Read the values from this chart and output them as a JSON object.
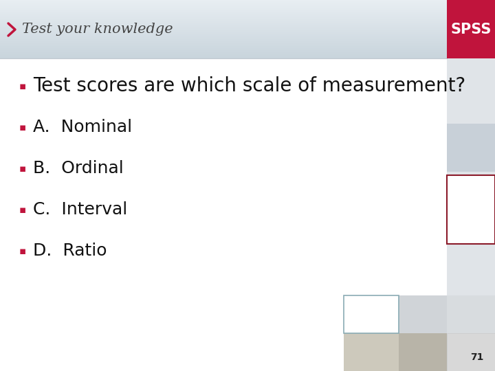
{
  "title": "Test your knowledge",
  "bullet_char": "▪",
  "question": "Test scores are which scale of measurement?",
  "options": [
    "A.  Nominal",
    "B.  Ordinal",
    "C.  Interval",
    "D.  Ratio"
  ],
  "bg_gradient_top": "#c8d4dc",
  "bg_gradient_bottom": "#e8eef2",
  "spss_red": "#c0143c",
  "spss_text": "SPSS",
  "title_color": "#444444",
  "question_color": "#111111",
  "option_color": "#111111",
  "bullet_color": "#c0143c",
  "chevron_color": "#c0143c",
  "page_number": "71",
  "header_line_color": "#c0c8d0",
  "right_strip_color": "#e0e4e8",
  "deco_box_red_border": "#8b1a2a",
  "deco_box_teal_border": "#8aabb4"
}
